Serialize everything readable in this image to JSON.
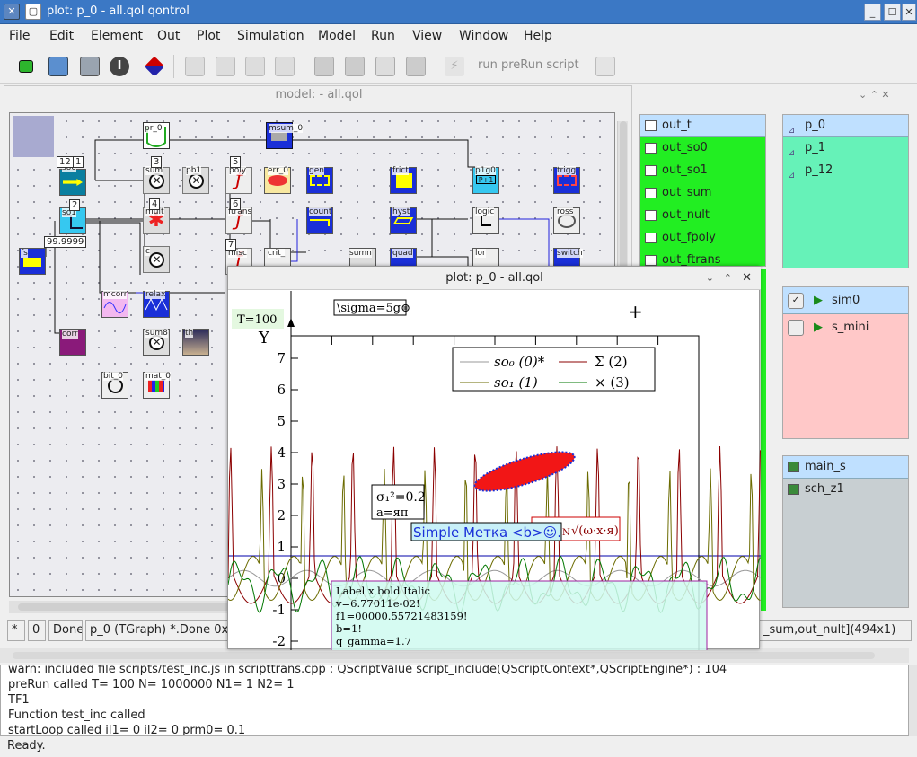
{
  "window": {
    "title": "plot: p_0 - all.qol qontrol",
    "controls": [
      "_",
      "☐",
      "✕"
    ]
  },
  "menu": [
    "File",
    "Edit",
    "Element",
    "Out",
    "Plot",
    "Simulation",
    "Model",
    "Run",
    "View",
    "Window",
    "Help"
  ],
  "toolbar": {
    "run_prerun": "run preRun script"
  },
  "model_window": {
    "title": "model:  - all.qol"
  },
  "blocks": {
    "pr_0": "pr_0",
    "msum_0": "msum_0",
    "so0": "so0",
    "so1": "so1",
    "sum": "sum",
    "pb1": "pb1",
    "poly": "poly",
    "err_0": "err_0",
    "gen": "gen",
    "frict": "frict",
    "p1g0": "p1g0",
    "trigg": "trigg",
    "mult": "mult",
    "ftrans": "ftrans",
    "count": "count",
    "hyst": "hyst",
    "logic": "logic",
    "ross": "ross",
    "fs": "fs",
    "c": "c",
    "misc": "misc",
    "crit": "crit_",
    "sumn": "sumn",
    "quad": "quad",
    "lor": "lor",
    "switch": "switch",
    "mcorr": "mcorr",
    "relax": "relax",
    "corr": "corr",
    "sum8": "sum8",
    "th": "th",
    "bit_0": "bit_0",
    "mat_0": "mat_0",
    "val_so1": "99.9999",
    "n12": "12",
    "n1": "1",
    "n3": "3",
    "n5": "5",
    "n4": "4",
    "n6": "6",
    "n7": "7",
    "n2": "2"
  },
  "outputs": [
    "out_t",
    "out_so0",
    "out_so1",
    "out_sum",
    "out_nult",
    "out_fpoly",
    "out_ftrans"
  ],
  "plots": [
    "p_0",
    "p_1",
    "p_12"
  ],
  "sims": [
    "sim0",
    "s_mini"
  ],
  "schemes": [
    "main_s",
    "sch_z1"
  ],
  "plot": {
    "title": "plot: p_0 - all.qol",
    "t_label": "T=100",
    "sigma_label": "\\sigma=5g⊜",
    "ylabel": "Y",
    "ticks": [
      "7",
      "6",
      "5",
      "4",
      "3",
      "2",
      "1",
      "0",
      "-1",
      "-2",
      "-3"
    ],
    "legend": [
      "so₀ (0)*",
      "Σ (2)",
      "so₁ (1)",
      "× (3)"
    ],
    "annot1": [
      "σ₁²=0.2",
      "a=яп"
    ],
    "annot2": "Simple Метка <b>☺.",
    "annot3": "√(ω·x·я)",
    "annot3_prefix": "N",
    "infobox": [
      "Label x bold Italic",
      "v=6.77011e-02!",
      "f1=00000.55721483159!",
      "b=1!",
      "q_gamma=1.7"
    ]
  },
  "chart_data": {
    "type": "line",
    "xlabel": "",
    "ylabel": "Y",
    "ylim": [
      -3,
      7
    ],
    "series": [
      {
        "name": "so₀ (0)*",
        "color": "#999999"
      },
      {
        "name": "Σ (2)",
        "color": "#8b0000"
      },
      {
        "name": "so₁ (1)",
        "color": "#6b6b00"
      },
      {
        "name": "× (3)",
        "color": "#007700"
      }
    ]
  },
  "status": {
    "s1": "*",
    "s2": "0",
    "s3": "Done",
    "s4": "p_0 (TGraph) *.Done 0x",
    "s5": "_sum,out_nult](494x1)"
  },
  "console": [
    "warn: included file  scripts/test_inc.js   in  scripttrans.cpp : QScriptValue script_include(QScriptContext*,QScriptEngine*) : 104",
    "preRun called T=  100  N=  1000000  N1=  1  N2= 1",
    "TF1",
    "Function test_inc called",
    "startLoop called il1=  0  il2=  0  prm0= 0.1"
  ],
  "ready": "Ready.",
  "colors": {
    "titlebar": "#3b78c5",
    "outputs": "#22ee22",
    "plots_panel": "#66f2b8",
    "sims_panel": "#ffc8c8",
    "schemes_panel": "#c8cfd2"
  }
}
